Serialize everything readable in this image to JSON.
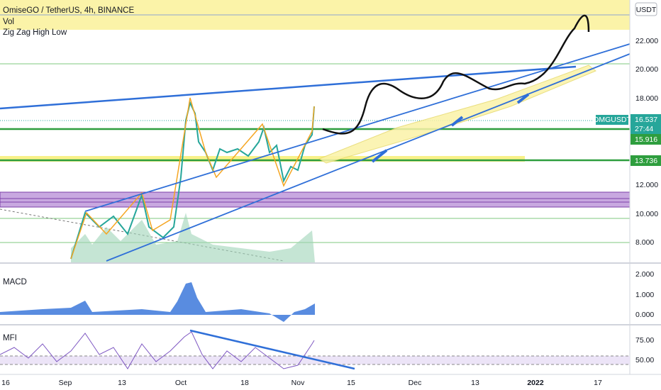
{
  "header": {
    "title": "OmiseGO / TetherUS, 4h, BINANCE",
    "indicators": [
      "Vol",
      "Zig Zag High Low"
    ]
  },
  "currency": "USDT",
  "price_axis": {
    "labels": [
      "22.000",
      "20.000",
      "18.000",
      "12.000",
      "10.000",
      "8.000"
    ]
  },
  "symbol_label": "OMGUSDT",
  "current_price": "16.537",
  "countdown": "27:44",
  "level_labels": [
    "15.916",
    "13.736"
  ],
  "macd": {
    "title": "MACD",
    "labels": [
      "2.000",
      "1.000",
      "0.000"
    ]
  },
  "mfi": {
    "title": "MFI",
    "labels": [
      "75.00",
      "50.00"
    ]
  },
  "time_axis": {
    "labels": [
      "16",
      "Sep",
      "13",
      "Oct",
      "18",
      "Nov",
      "15",
      "Dec",
      "13",
      "2022",
      "17"
    ]
  }
}
